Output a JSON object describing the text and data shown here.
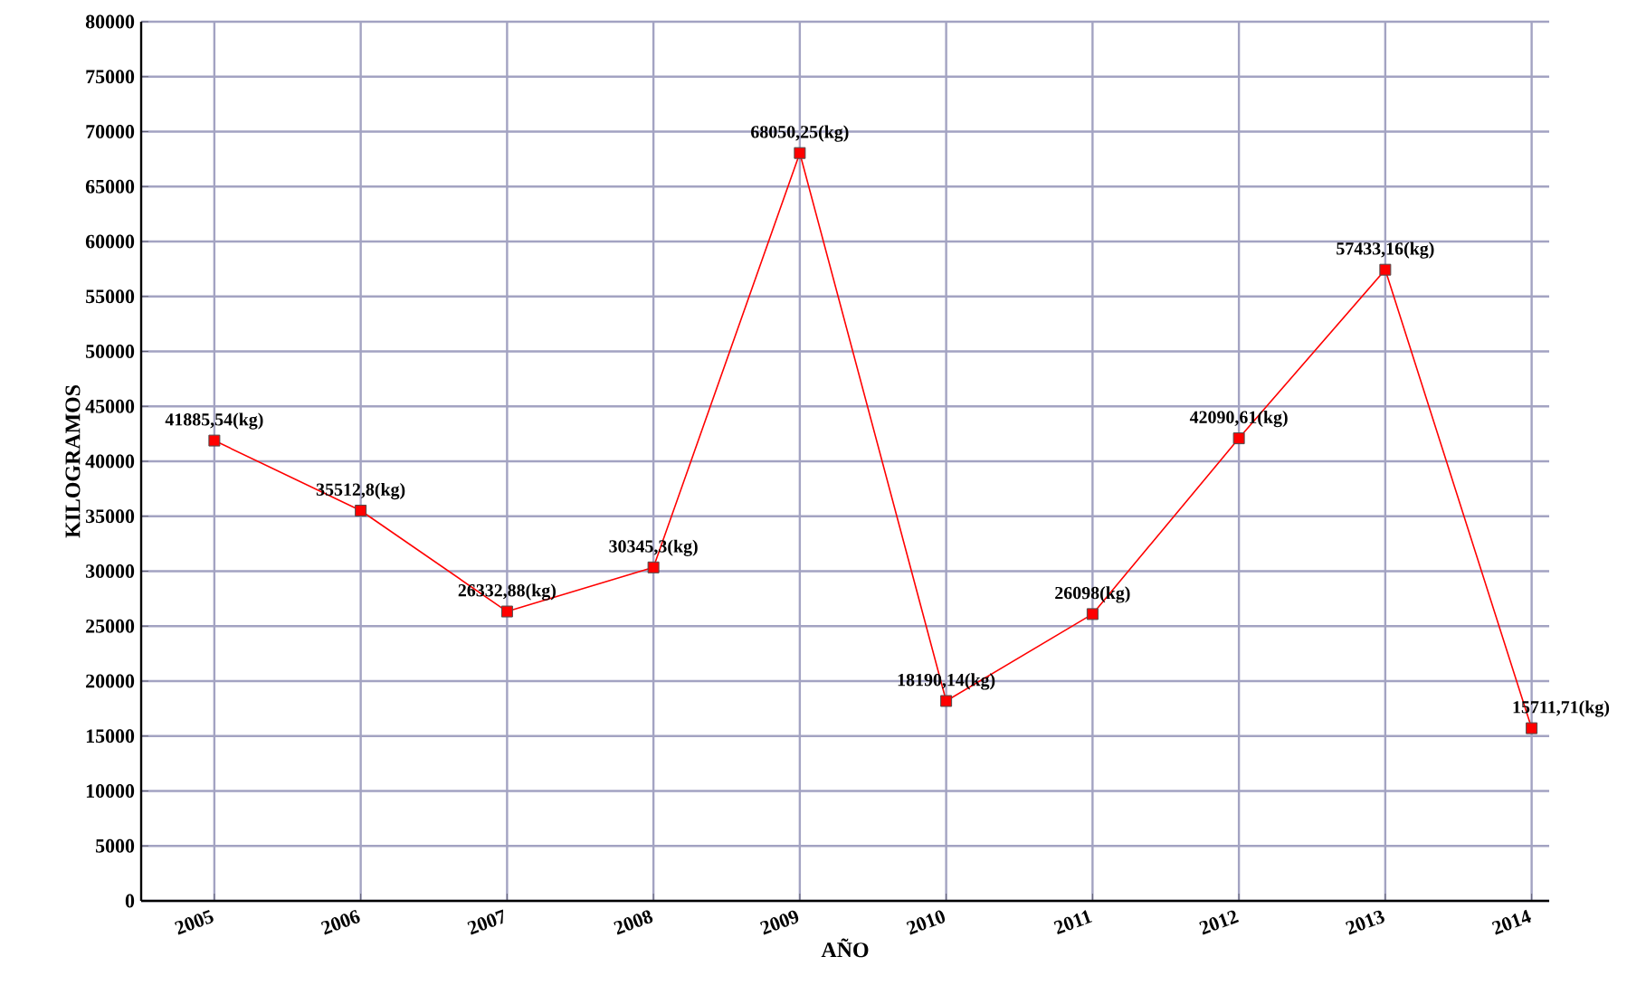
{
  "chart_data": {
    "type": "line",
    "xlabel": "AÑO",
    "ylabel": "KILOGRAMOS",
    "categories": [
      "2005",
      "2006",
      "2007",
      "2008",
      "2009",
      "2010",
      "2011",
      "2012",
      "2013",
      "2014"
    ],
    "series": [
      {
        "color": "#ff0000",
        "values": [
          41885.54,
          35512.8,
          26332.88,
          30345.3,
          68050.25,
          18190.14,
          26098,
          42090.61,
          57433.16,
          15711.71
        ],
        "value_labels": [
          "41885,54(kg)",
          "35512,8(kg)",
          "26332,88(kg)",
          "30345,3(kg)",
          "68050,25(kg)",
          "18190,14(kg)",
          "26098(kg)",
          "42090,61(kg)",
          "57433,16(kg)",
          "15711,71(kg)"
        ]
      }
    ],
    "ylim": [
      0,
      80000
    ],
    "yticks": [
      0,
      5000,
      10000,
      15000,
      20000,
      25000,
      30000,
      35000,
      40000,
      45000,
      50000,
      55000,
      60000,
      65000,
      70000,
      75000,
      80000
    ],
    "grid": true,
    "marker": "square",
    "line_style": "solid"
  }
}
